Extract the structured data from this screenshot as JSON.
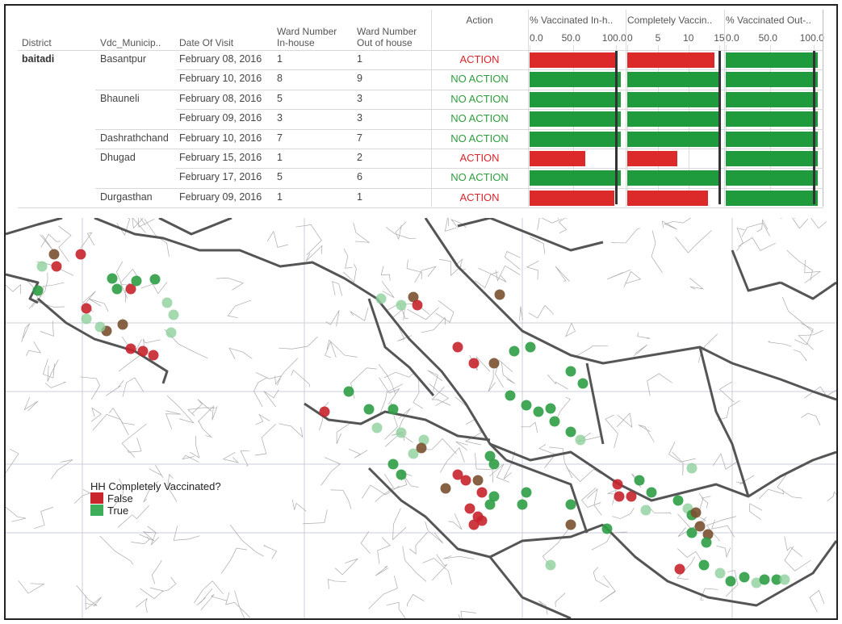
{
  "table": {
    "headers": {
      "district": "District",
      "vdc": "Vdc_Municip..",
      "date": "Date Of Visit",
      "ward_in": [
        "Ward Number",
        "In-house"
      ],
      "ward_out": [
        "Ward Number",
        "Out of house"
      ],
      "action": "Action",
      "pct_in": "% Vaccinated In-h..",
      "complete": "Completely Vaccin..",
      "pct_out": "% Vaccinated Out-.."
    },
    "axes": {
      "pct_in": {
        "ticks": [
          "0.0",
          "50.0",
          "100.0"
        ],
        "range": [
          0,
          110
        ],
        "reference": 100
      },
      "complete": {
        "ticks": [
          "0",
          "5",
          "10",
          "15"
        ],
        "range": [
          0,
          15.5
        ],
        "reference": 15
      },
      "pct_out": {
        "ticks": [
          "0.0",
          "50.0",
          "100.0"
        ],
        "range": [
          0,
          108
        ],
        "reference": 100
      }
    },
    "district": "baitadi",
    "rows": [
      {
        "vdc": "Basantpur",
        "date": "February 08, 2016",
        "ward_in": "1",
        "ward_out": "1",
        "action": "ACTION",
        "pct_in": 100,
        "complete": 14.2,
        "pct_out": 104
      },
      {
        "vdc": "",
        "date": "February 10, 2016",
        "ward_in": "8",
        "ward_out": "9",
        "action": "NO ACTION",
        "pct_in": 105,
        "complete": 15,
        "pct_out": 104
      },
      {
        "vdc": "Bhauneli",
        "date": "February 08, 2016",
        "ward_in": "5",
        "ward_out": "3",
        "action": "NO ACTION",
        "pct_in": 105,
        "complete": 15,
        "pct_out": 104
      },
      {
        "vdc": "",
        "date": "February 09, 2016",
        "ward_in": "3",
        "ward_out": "3",
        "action": "NO ACTION",
        "pct_in": 105,
        "complete": 15,
        "pct_out": 104
      },
      {
        "vdc": "Dashrathchand",
        "date": "February 10, 2016",
        "ward_in": "7",
        "ward_out": "7",
        "action": "NO ACTION",
        "pct_in": 105,
        "complete": 15,
        "pct_out": 104
      },
      {
        "vdc": "Dhugad",
        "date": "February 15, 2016",
        "ward_in": "1",
        "ward_out": "2",
        "action": "ACTION",
        "pct_in": 64,
        "complete": 8.2,
        "pct_out": 104
      },
      {
        "vdc": "",
        "date": "February 17, 2016",
        "ward_in": "5",
        "ward_out": "6",
        "action": "NO ACTION",
        "pct_in": 105,
        "complete": 15,
        "pct_out": 104
      },
      {
        "vdc": "Durgasthan",
        "date": "February 09, 2016",
        "ward_in": "1",
        "ward_out": "1",
        "action": "ACTION",
        "pct_in": 98,
        "complete": 13.2,
        "pct_out": 104
      }
    ]
  },
  "map": {
    "legend": {
      "title": "HH Completely Vaccinated?",
      "items": [
        {
          "label": "False",
          "color": "#c9252c"
        },
        {
          "label": "True",
          "color": "#35a546"
        }
      ]
    }
  },
  "colors": {
    "action": "#d9262c",
    "no_action": "#2e9e3e",
    "bar_red": "#dc2a2a",
    "bar_green": "#1f9a3c",
    "dot_brown": "#7a5030"
  }
}
